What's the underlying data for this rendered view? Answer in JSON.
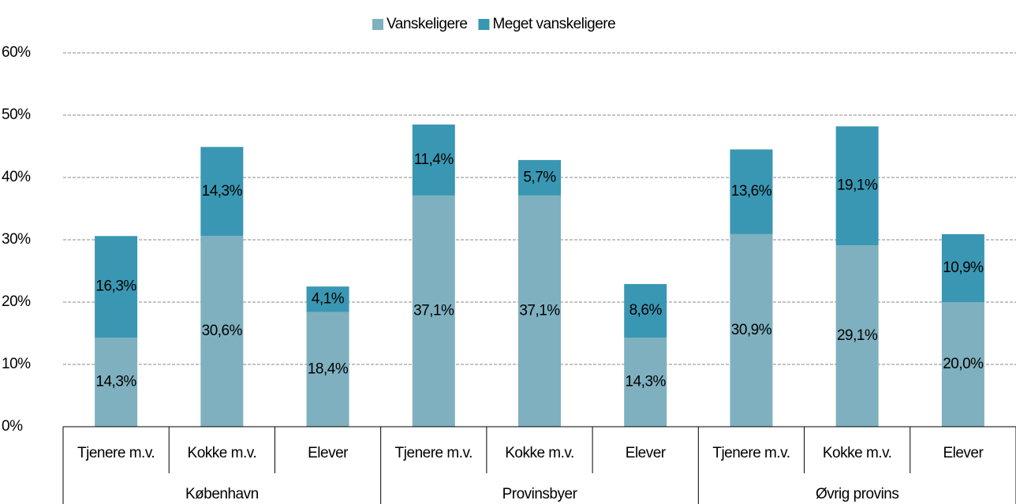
{
  "chart_data": {
    "type": "stacked_bar",
    "categories": [
      "Tjenere m.v.",
      "Kokke m.v.",
      "Elever",
      "Tjenere m.v.",
      "Kokke m.v.",
      "Elever",
      "Tjenere m.v.",
      "Kokke m.v.",
      "Elever"
    ],
    "groups": [
      "København",
      "Provinsbyer",
      "Øvrig provins"
    ],
    "series": [
      {
        "name": "Vanskeligere",
        "color": "#7fb0bf",
        "values": [
          14.3,
          30.6,
          18.4,
          37.1,
          37.1,
          14.3,
          30.9,
          29.1,
          20.0
        ],
        "value_labels": [
          "14,3%",
          "30,6%",
          "18,4%",
          "37,1%",
          "37,1%",
          "14,3%",
          "30,9%",
          "29,1%",
          "20,0%"
        ]
      },
      {
        "name": "Meget vanskeligere",
        "color": "#3a97b3",
        "values": [
          16.3,
          14.3,
          4.1,
          11.4,
          5.7,
          8.6,
          13.6,
          19.1,
          10.9
        ],
        "value_labels": [
          "16,3%",
          "14,3%",
          "4,1%",
          "11,4%",
          "5,7%",
          "8,6%",
          "13,6%",
          "19,1%",
          "10,9%"
        ]
      }
    ],
    "ylim": [
      0,
      60
    ],
    "yticks": [
      {
        "value": 0,
        "label": "0%"
      },
      {
        "value": 10,
        "label": "10%"
      },
      {
        "value": 20,
        "label": "20%"
      },
      {
        "value": 30,
        "label": "30%"
      },
      {
        "value": 40,
        "label": "40%"
      },
      {
        "value": 50,
        "label": "50%"
      },
      {
        "value": 60,
        "label": "60%"
      }
    ],
    "grid": true,
    "legend": "top"
  }
}
